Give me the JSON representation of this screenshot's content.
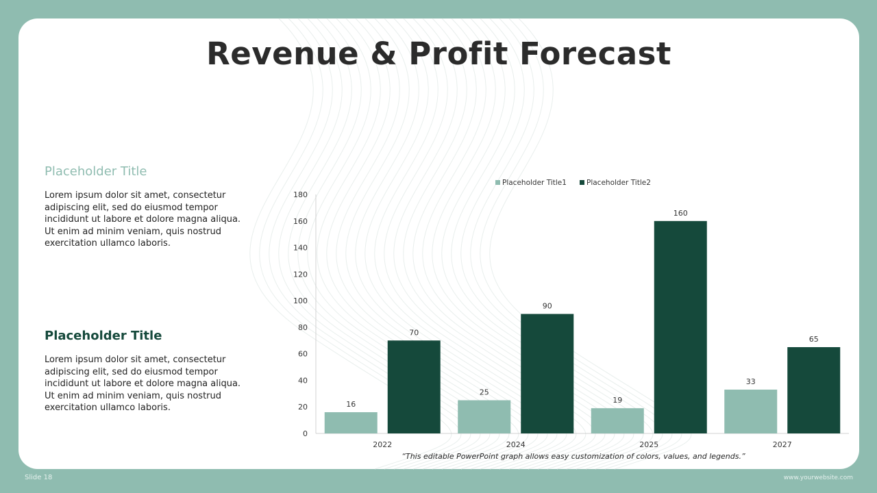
{
  "slide": {
    "title": "Revenue & Profit Forecast",
    "slide_number": "Slide 18",
    "website": "www.yourwebsite.com",
    "note": "“This editable PowerPoint graph allows easy customization of colors, values, and legends.”"
  },
  "blocks": [
    {
      "title": "Placeholder Title",
      "body": "Lorem ipsum dolor sit amet, consectetur adipiscing elit, sed do eiusmod tempor incididunt ut labore et dolore magna aliqua. Ut enim ad minim veniam, quis nostrud exercitation ullamco laboris."
    },
    {
      "title": "Placeholder Title",
      "body": "Lorem ipsum dolor sit amet, consectetur adipiscing elit, sed do eiusmod tempor incididunt ut labore et dolore magna aliqua. Ut enim ad minim veniam, quis nostrud exercitation ullamco laboris."
    }
  ],
  "colors": {
    "background": "#8fbcb0",
    "series1": "#8fbcb0",
    "series2": "#15493b"
  },
  "chart_data": {
    "type": "bar",
    "categories": [
      "2022",
      "2024",
      "2025",
      "2027"
    ],
    "series": [
      {
        "name": "Placeholder Title1",
        "values": [
          16,
          25,
          19,
          33
        ],
        "color": "#8fbcb0"
      },
      {
        "name": "Placeholder Title2",
        "values": [
          70,
          90,
          160,
          65
        ],
        "color": "#15493b"
      }
    ],
    "ylim": [
      0,
      180
    ],
    "yticks": [
      0,
      20,
      40,
      60,
      80,
      100,
      120,
      140,
      160,
      180
    ],
    "data_labels": true,
    "legend": "top-center",
    "grid": false
  }
}
